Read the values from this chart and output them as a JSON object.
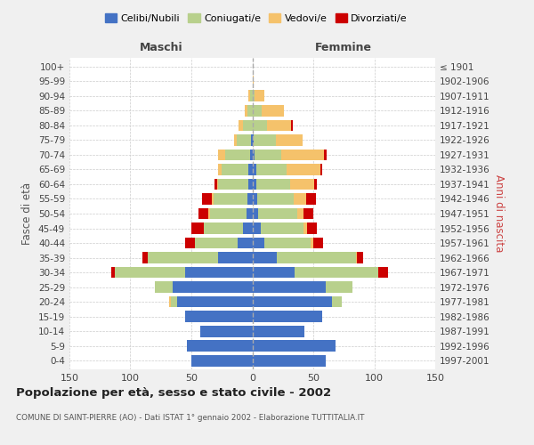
{
  "age_groups": [
    "100+",
    "95-99",
    "90-94",
    "85-89",
    "80-84",
    "75-79",
    "70-74",
    "65-69",
    "60-64",
    "55-59",
    "50-54",
    "45-49",
    "40-44",
    "35-39",
    "30-34",
    "25-29",
    "20-24",
    "15-19",
    "10-14",
    "5-9",
    "0-4"
  ],
  "birth_years": [
    "≤ 1901",
    "1902-1906",
    "1907-1911",
    "1912-1916",
    "1917-1921",
    "1922-1926",
    "1927-1931",
    "1932-1936",
    "1937-1941",
    "1942-1946",
    "1947-1951",
    "1952-1956",
    "1957-1961",
    "1962-1966",
    "1967-1971",
    "1972-1976",
    "1977-1981",
    "1982-1986",
    "1987-1991",
    "1992-1996",
    "1997-2001"
  ],
  "males_celibi": [
    0,
    0,
    0,
    0,
    0,
    1,
    2,
    3,
    3,
    4,
    5,
    8,
    12,
    28,
    55,
    65,
    62,
    55,
    43,
    54,
    50
  ],
  "males_coniugati": [
    0,
    0,
    2,
    4,
    8,
    12,
    20,
    22,
    25,
    28,
    30,
    32,
    35,
    58,
    58,
    15,
    5,
    0,
    0,
    0,
    0
  ],
  "males_vedovi": [
    0,
    0,
    1,
    2,
    3,
    2,
    6,
    3,
    1,
    1,
    1,
    0,
    0,
    0,
    0,
    0,
    1,
    0,
    0,
    0,
    0
  ],
  "males_divorziati": [
    0,
    0,
    0,
    0,
    0,
    0,
    0,
    0,
    2,
    8,
    8,
    10,
    8,
    4,
    3,
    0,
    0,
    0,
    0,
    0,
    0
  ],
  "females_nubili": [
    0,
    0,
    0,
    0,
    0,
    1,
    2,
    3,
    3,
    4,
    5,
    7,
    10,
    20,
    35,
    60,
    65,
    57,
    43,
    68,
    60
  ],
  "females_coniugate": [
    0,
    0,
    2,
    8,
    12,
    18,
    22,
    25,
    28,
    30,
    32,
    35,
    38,
    65,
    68,
    22,
    8,
    0,
    0,
    0,
    0
  ],
  "females_vedove": [
    0,
    1,
    8,
    18,
    20,
    22,
    35,
    28,
    20,
    10,
    5,
    3,
    2,
    1,
    0,
    0,
    0,
    0,
    0,
    0,
    0
  ],
  "females_divorziate": [
    0,
    0,
    0,
    0,
    1,
    0,
    2,
    1,
    2,
    8,
    8,
    8,
    8,
    5,
    8,
    0,
    0,
    0,
    0,
    0,
    0
  ],
  "color_celibi": "#4472c4",
  "color_coniugati": "#b8d08c",
  "color_vedovi": "#f5c26b",
  "color_divorziati": "#cc0000",
  "xlim": 150,
  "title": "Popolazione per età, sesso e stato civile - 2002",
  "subtitle": "COMUNE DI SAINT-PIERRE (AO) - Dati ISTAT 1° gennaio 2002 - Elaborazione TUTTITALIA.IT",
  "ylabel_left": "Fasce di età",
  "ylabel_right": "Anni di nascita",
  "label_maschi": "Maschi",
  "label_femmine": "Femmine",
  "legend_labels": [
    "Celibi/Nubili",
    "Coniugati/e",
    "Vedovi/e",
    "Divorziati/e"
  ],
  "bg_color": "#f0f0f0",
  "plot_bg_color": "#ffffff",
  "grid_color": "#cccccc"
}
